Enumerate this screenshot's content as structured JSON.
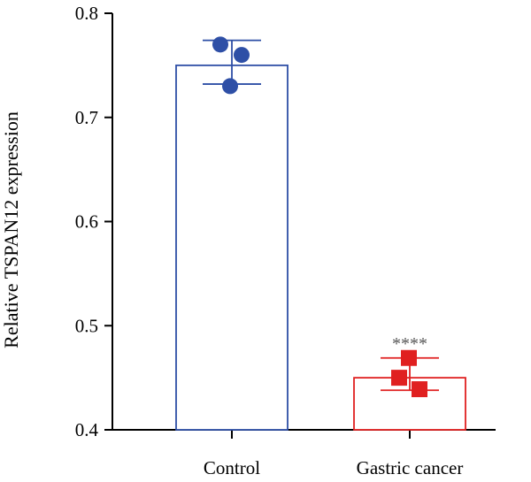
{
  "chart_data": {
    "type": "bar",
    "title": "",
    "xlabel": "",
    "ylabel": "Relative TSPAN12 expression",
    "ylim": [
      0.4,
      0.8
    ],
    "yticks": [
      "0.4",
      "0.5",
      "0.6",
      "0.7",
      "0.8"
    ],
    "grid": false,
    "categories": [
      "Control",
      "Gastric cancer"
    ],
    "series": [
      {
        "category": "Control",
        "mean": 0.75,
        "error_low": 0.732,
        "error_high": 0.774,
        "points": [
          0.77,
          0.76,
          0.73
        ],
        "marker": "circle",
        "color": "#2e4fa6"
      },
      {
        "category": "Gastric cancer",
        "mean": 0.45,
        "error_low": 0.438,
        "error_high": 0.469,
        "points": [
          0.469,
          0.45,
          0.439
        ],
        "marker": "square",
        "color": "#e02020",
        "annotation": "****"
      }
    ]
  }
}
